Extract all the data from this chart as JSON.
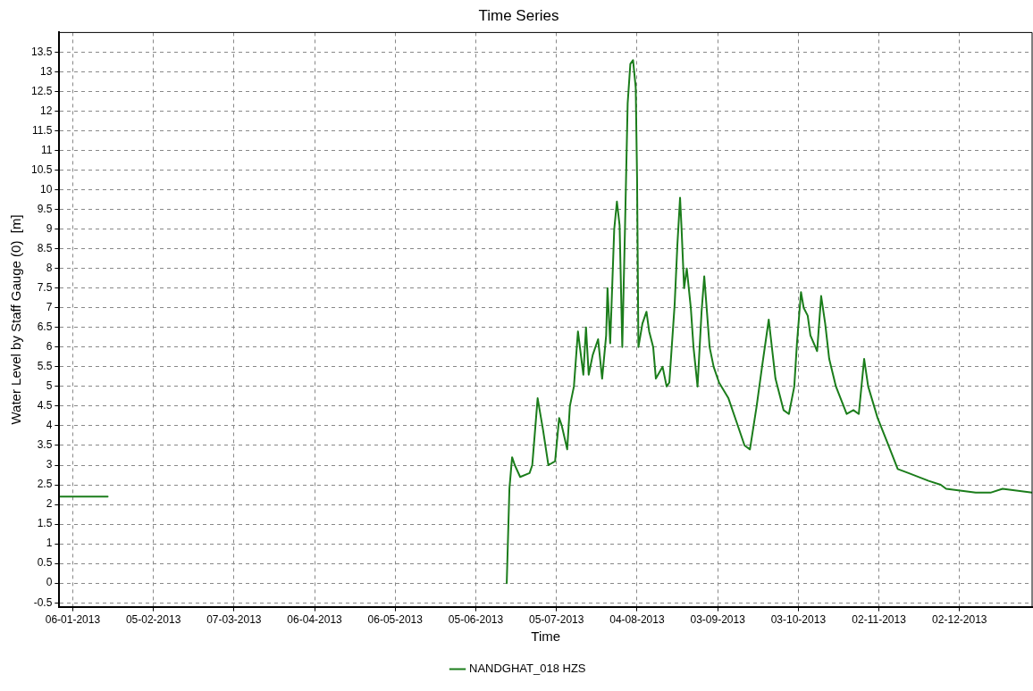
{
  "chart_data": {
    "type": "line",
    "title": "Time Series",
    "xlabel": "Time",
    "ylabel": "Water Level by Staff Gauge (0)  [m]",
    "xlim": [
      "2013-01-01",
      "2013-12-29"
    ],
    "xticks": [
      {
        "value": "2013-01-06",
        "label": "06-01-2013"
      },
      {
        "value": "2013-02-05",
        "label": "05-02-2013"
      },
      {
        "value": "2013-03-07",
        "label": "07-03-2013"
      },
      {
        "value": "2013-04-06",
        "label": "06-04-2013"
      },
      {
        "value": "2013-05-06",
        "label": "06-05-2013"
      },
      {
        "value": "2013-06-05",
        "label": "05-06-2013"
      },
      {
        "value": "2013-07-05",
        "label": "05-07-2013"
      },
      {
        "value": "2013-08-04",
        "label": "04-08-2013"
      },
      {
        "value": "2013-09-03",
        "label": "03-09-2013"
      },
      {
        "value": "2013-10-03",
        "label": "03-10-2013"
      },
      {
        "value": "2013-11-02",
        "label": "02-11-2013"
      },
      {
        "value": "2013-12-02",
        "label": "02-12-2013"
      }
    ],
    "ylim": [
      -0.6,
      14
    ],
    "yticks": [
      -0.5,
      0,
      0.5,
      1,
      1.5,
      2,
      2.5,
      3,
      3.5,
      4,
      4.5,
      5,
      5.5,
      6,
      6.5,
      7,
      7.5,
      8,
      8.5,
      9,
      9.5,
      10,
      10.5,
      11,
      11.5,
      12,
      12.5,
      13,
      13.5
    ],
    "grid": true,
    "legend": "bottom",
    "marker": "none",
    "line_style": "solid",
    "series": [
      {
        "name": "NANDGHAT_018 HZS",
        "color": "#1b7d1b",
        "x": [
          "2013-01-01",
          "2013-01-19",
          "2013-04-01",
          "2013-06-16T12:00",
          "2013-06-17T12:00",
          "2013-06-18T12:00",
          "2013-06-19T12:00",
          "2013-06-21T12:00",
          "2013-06-25",
          "2013-06-26",
          "2013-06-28",
          "2013-06-30",
          "2013-07-02",
          "2013-07-04T12:00",
          "2013-07-06",
          "2013-07-07",
          "2013-07-09",
          "2013-07-10",
          "2013-07-11T12:00",
          "2013-07-13",
          "2013-07-15",
          "2013-07-16",
          "2013-07-17",
          "2013-07-18T12:00",
          "2013-07-20T12:00",
          "2013-07-22",
          "2013-07-23T12:00",
          "2013-07-24",
          "2013-07-25",
          "2013-07-26T12:00",
          "2013-07-27T12:00",
          "2013-07-28T12:00",
          "2013-07-29T12:00",
          "2013-07-30T12:00",
          "2013-07-31T12:00",
          "2013-08-01T12:00",
          "2013-08-02T12:00",
          "2013-08-03T12:00",
          "2013-08-04",
          "2013-08-04T12:00",
          "2013-08-06",
          "2013-08-07T12:00",
          "2013-08-08T12:00",
          "2013-08-10",
          "2013-08-11",
          "2013-08-13T12:00",
          "2013-08-15",
          "2013-08-16",
          "2013-08-18",
          "2013-08-19",
          "2013-08-20",
          "2013-08-20T12:00",
          "2013-08-21T12:00",
          "2013-08-22T12:00",
          "2013-08-24",
          "2013-08-25",
          "2013-08-26T12:00",
          "2013-08-28",
          "2013-08-29",
          "2013-08-30",
          "2013-08-31",
          "2013-09-01T12:00",
          "2013-09-03T12:00",
          "2013-09-07",
          "2013-09-10",
          "2013-09-13",
          "2013-09-15",
          "2013-09-17T12:00",
          "2013-09-19T12:00",
          "2013-09-22",
          "2013-09-24T12:00",
          "2013-09-27T12:00",
          "2013-09-29T12:00",
          "2013-10-01T12:00",
          "2013-10-02T12:00",
          "2013-10-04",
          "2013-10-05",
          "2013-10-06T12:00",
          "2013-10-07T12:00",
          "2013-10-10",
          "2013-10-11T12:00",
          "2013-10-13",
          "2013-10-14T12:00",
          "2013-10-17",
          "2013-10-21",
          "2013-10-23T12:00",
          "2013-10-25T12:00",
          "2013-10-27T12:00",
          "2013-10-29",
          "2013-11-01T12:00",
          "2013-11-05",
          "2013-11-09",
          "2013-11-13",
          "2013-11-20T12:00",
          "2013-11-25",
          "2013-11-27",
          "2013-12-08",
          "2013-12-13T12:00",
          "2013-12-18",
          "2013-12-29"
        ],
        "values": [
          2.2,
          2.2,
          null,
          0,
          2.4,
          3.2,
          3.0,
          2.7,
          2.8,
          3.0,
          4.7,
          3.9,
          3.0,
          3.1,
          4.2,
          4.0,
          3.4,
          4.5,
          5.0,
          6.4,
          5.3,
          6.5,
          5.3,
          5.8,
          6.2,
          5.2,
          6.3,
          7.5,
          6.1,
          9.0,
          9.7,
          9.1,
          6.0,
          9.0,
          12.2,
          13.2,
          13.3,
          12.6,
          10.3,
          6.0,
          6.6,
          6.9,
          6.4,
          6.0,
          5.2,
          5.5,
          5.0,
          5.1,
          7.1,
          8.6,
          9.8,
          9.1,
          7.5,
          8.0,
          7.0,
          6.0,
          5.0,
          6.9,
          7.8,
          6.9,
          6.0,
          5.5,
          5.1,
          4.7,
          4.1,
          3.5,
          3.4,
          4.5,
          5.5,
          6.7,
          5.2,
          4.4,
          4.3,
          5.0,
          6.1,
          7.4,
          7.0,
          6.8,
          6.3,
          5.9,
          7.3,
          6.6,
          5.7,
          5.0,
          4.3,
          4.4,
          4.3,
          5.7,
          5.0,
          4.2,
          3.6,
          2.9,
          2.8,
          2.6,
          2.5,
          2.4,
          2.3,
          2.3,
          2.4,
          2.3
        ]
      }
    ]
  }
}
